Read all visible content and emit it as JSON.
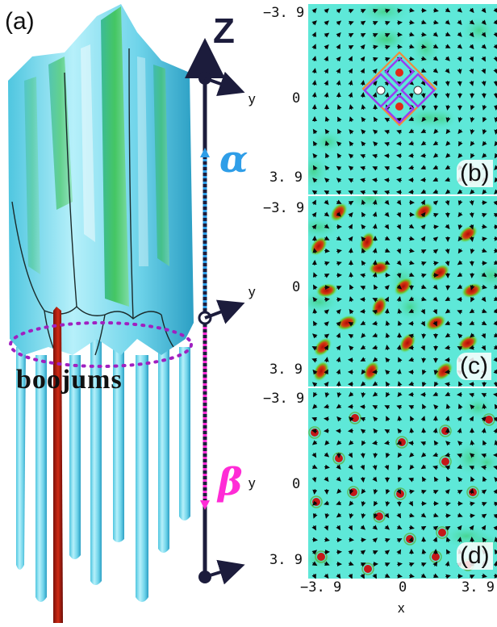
{
  "panel_a": {
    "label": "(a)",
    "z_axis_label": "Z",
    "y_label": "y",
    "alpha_symbol": "α",
    "beta_symbol": "β",
    "boojums_label": "boojums",
    "colors": {
      "alpha": "#2f9ee8",
      "beta": "#ff2bd6",
      "surface": "#7fd8ec",
      "core": "#b41a10",
      "ring": "#a020c0",
      "axis": "#1c1c3c"
    }
  },
  "panels": [
    {
      "label": "(b)",
      "ytick_top": "−3. 9",
      "ytick_mid": "0",
      "ytick_bottom": "3. 9"
    },
    {
      "label": "(c)",
      "ytick_top": "−3. 9",
      "ytick_mid": "0",
      "ytick_bottom": "3. 9"
    },
    {
      "label": "(d)",
      "ytick_top": "−3. 9",
      "ytick_mid": "0",
      "ytick_bottom": "3. 9"
    }
  ],
  "x_axis": {
    "ticks": [
      "−3. 9",
      "0",
      "3. 9"
    ],
    "label": "x"
  },
  "colors": {
    "field_bg": "#5ee8d8",
    "vortex": "#c41818",
    "arrow": "#0a0a0a",
    "diamond_orange": "#f08a3c",
    "diamond_purple": "#9a3cf0"
  }
}
